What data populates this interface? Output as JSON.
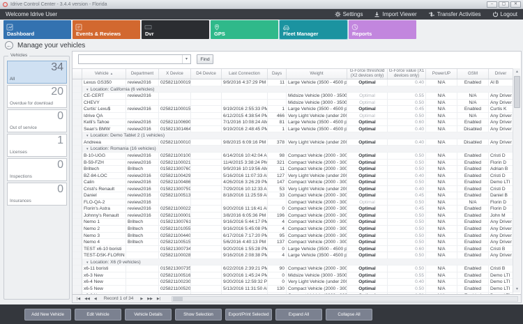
{
  "window": {
    "title": "Idrive Control Center - 3.4.4 version - Florida",
    "controls": [
      "minimize",
      "maximize",
      "close"
    ]
  },
  "menubar": {
    "welcome": "Welcome Idrive User",
    "actions": [
      {
        "id": "settings",
        "icon": "gear-icon",
        "label": "Settings"
      },
      {
        "id": "import-viewer",
        "icon": "download-icon",
        "label": "Import Viewer"
      },
      {
        "id": "transfer-activities",
        "icon": "transfer-icon",
        "label": "Transfer Activities"
      },
      {
        "id": "logout",
        "icon": "power-icon",
        "label": "Logout"
      }
    ]
  },
  "tabs": [
    {
      "id": "dashboard",
      "label": "Dashboard",
      "color": "#3372b0",
      "icon": "dashboard-icon",
      "selected": false
    },
    {
      "id": "events-reviews",
      "label": "Events & Reviews",
      "color": "#d2682f",
      "icon": "events-icon",
      "selected": false
    },
    {
      "id": "dvr",
      "label": "Dvr",
      "color": "#2b2d31",
      "icon": "dvr-icon",
      "selected": false
    },
    {
      "id": "gps",
      "label": "GPS",
      "color": "#2fb98a",
      "icon": "gps-icon",
      "selected": false
    },
    {
      "id": "fleet-manager",
      "label": "Fleet Manager",
      "color": "#1b93a0",
      "icon": "fleet-icon",
      "selected": true
    },
    {
      "id": "reports",
      "label": "Reports",
      "color": "#c286de",
      "icon": "reports-icon",
      "selected": false
    }
  ],
  "page": {
    "title": "Manage your vehicles"
  },
  "sidebar": {
    "title": "Vehicles",
    "cards": [
      {
        "id": "all",
        "value": "34",
        "label": "All",
        "selected": true
      },
      {
        "id": "overdue-for-download",
        "value": "20",
        "label": "Overdue for download",
        "selected": false
      },
      {
        "id": "out-of-service",
        "value": "0",
        "label": "Out of service",
        "selected": false
      },
      {
        "id": "licenses",
        "value": "1",
        "label": "Licenses",
        "selected": false
      },
      {
        "id": "inspections",
        "value": "0",
        "label": "Inspections",
        "selected": false
      },
      {
        "id": "insurances",
        "value": "0",
        "label": "Insurances",
        "selected": false
      }
    ]
  },
  "search": {
    "value": "",
    "find_label": "Find"
  },
  "table": {
    "columns": [
      {
        "id": "vehicle",
        "label": "Vehicle",
        "sort": "asc"
      },
      {
        "id": "department",
        "label": "Department"
      },
      {
        "id": "x-device",
        "label": "X Device"
      },
      {
        "id": "d4-device",
        "label": "D4 Device"
      },
      {
        "id": "last-connection",
        "label": "Last Connection"
      },
      {
        "id": "days",
        "label": "Days"
      },
      {
        "id": "weight",
        "label": "Weight"
      },
      {
        "id": "gforce-threshold",
        "label": "G-Force threshold (X2 devices only)"
      },
      {
        "id": "gforce-value",
        "label": "G-Force value (X1 devices only)"
      },
      {
        "id": "powerup",
        "label": "PowerUP"
      },
      {
        "id": "gsm",
        "label": "GSM"
      },
      {
        "id": "driver",
        "label": "Driver"
      }
    ],
    "rows": [
      {
        "type": "data",
        "vehicle": "Lexus GS350",
        "department": "review2016",
        "x_device": "025821100019",
        "d4_device": "",
        "last_connection": "9/9/2016 4:37:29 PM",
        "days": "11",
        "weight": "Large Vehicle (3500 - 4500 pounds)",
        "gforce_threshold": "Optimal",
        "gforce_value": "0.40",
        "powerup": "N/A",
        "gsm": "Enabled",
        "driver": "Al B"
      },
      {
        "type": "group",
        "label": "Location: California (6 vehicles)"
      },
      {
        "type": "data",
        "muted": true,
        "vehicle": "CE-CERT",
        "department": "review2016",
        "x_device": "",
        "d4_device": "",
        "last_connection": "",
        "days": "",
        "weight": "Midsize Vehicle (3000 - 3500 pounds)",
        "gforce_threshold": "Optimal",
        "gforce_value": "0.55",
        "powerup": "N/A",
        "gsm": "N/A",
        "driver": "Any Driver"
      },
      {
        "type": "data",
        "muted": true,
        "vehicle": "CHEVY",
        "department": "",
        "x_device": "",
        "d4_device": "",
        "last_connection": "",
        "days": "",
        "weight": "Midsize Vehicle (3000 - 3500 pounds)",
        "gforce_threshold": "Optimal",
        "gforce_value": "0.50",
        "powerup": "N/A",
        "gsm": "N/A",
        "driver": "Any Driver"
      },
      {
        "type": "data",
        "vehicle": "Curtis' Lexu$",
        "department": "review2016",
        "x_device": "025821100015",
        "d4_device": "",
        "last_connection": "9/19/2016 2:55:33 PM",
        "days": "1",
        "weight": "Large Vehicle (3500 - 4500 pounds)",
        "gforce_threshold": "Optimal",
        "gforce_value": "0.45",
        "powerup": "N/A",
        "gsm": "Enabled",
        "driver": "Curtis K"
      },
      {
        "type": "data",
        "muted": true,
        "vehicle": "Idrive QA",
        "department": "",
        "x_device": "",
        "d4_device": "",
        "last_connection": "6/12/2015 4:38:54 PM",
        "days": "466",
        "weight": "Very Light Vehicle (under 2000 pounds)",
        "gforce_threshold": "Optimal",
        "gforce_value": "0.50",
        "powerup": "N/A",
        "gsm": "N/A",
        "driver": "Any Driver"
      },
      {
        "type": "data",
        "vehicle": "Kelli's Tahoe",
        "department": "review2016",
        "x_device": "025821100690",
        "d4_device": "",
        "last_connection": "7/1/2016 10:08:24 AM",
        "days": "81",
        "weight": "Large Vehicle (3500 - 4500 pounds)",
        "gforce_threshold": "Optimal",
        "gforce_value": "0.60",
        "powerup": "N/A",
        "gsm": "Enabled",
        "driver": "Any Driver"
      },
      {
        "type": "data",
        "vehicle": "Sean's BMW",
        "department": "review2016",
        "x_device": "015821301464",
        "d4_device": "",
        "last_connection": "9/19/2016 2:48:45 PM",
        "days": "1",
        "weight": "Large Vehicle (3500 - 4500 pounds)",
        "gforce_threshold": "Optimal",
        "gforce_value": "0.40",
        "powerup": "N/A",
        "gsm": "Disabled",
        "driver": "Any Driver"
      },
      {
        "type": "group",
        "label": "Location: Demo Tablet 2 (1 vehicles)"
      },
      {
        "type": "data",
        "vehicle": "Andreea",
        "department": "",
        "x_device": "025821100010",
        "d4_device": "",
        "last_connection": "9/8/2015 6:09:16 PM",
        "days": "378",
        "weight": "Very Light Vehicle (under 2000 pounds)",
        "gforce_threshold": "Optimal",
        "gforce_value": "0.40",
        "powerup": "N/A",
        "gsm": "Disabled",
        "driver": "Any Driver"
      },
      {
        "type": "group",
        "label": "Location: Romania (16 vehicles)"
      },
      {
        "type": "data",
        "vehicle": "B-10-UGG",
        "department": "review2016",
        "x_device": "025821100100",
        "d4_device": "",
        "last_connection": "6/14/2016 10:42:04 AM",
        "days": "98",
        "weight": "Compact Vehicle (2000 - 3000 pounds)",
        "gforce_threshold": "Optimal",
        "gforce_value": "0.50",
        "powerup": "N/A",
        "gsm": "Enabled",
        "driver": "Cristi D"
      },
      {
        "type": "data",
        "vehicle": "B-59-FZH",
        "department": "review2016",
        "x_device": "025821100021",
        "d4_device": "",
        "last_connection": "11/4/2015 3:38:24 PM",
        "days": "321",
        "weight": "Compact Vehicle (2000 - 3000 pounds)",
        "gforce_threshold": "Optimal",
        "gforce_value": "0.50",
        "powerup": "N/A",
        "gsm": "Enabled",
        "driver": "Florin D"
      },
      {
        "type": "data",
        "vehicle": "Briltech",
        "department": "Briltech",
        "x_device": "015821300760",
        "d4_device": "",
        "last_connection": "9/9/2016 10:19:56 AM",
        "days": "11",
        "weight": "Compact Vehicle (2000 - 3000 pounds)",
        "gforce_threshold": "Optimal",
        "gforce_value": "0.50",
        "powerup": "N/A",
        "gsm": "Enabled",
        "driver": "Adrian B"
      },
      {
        "type": "data",
        "vehicle": "BZ-84-LOC",
        "department": "review2016",
        "x_device": "025821100429",
        "d4_device": "",
        "last_connection": "5/16/2016 11:07:33 AM",
        "days": "127",
        "weight": "Very Light Vehicle (under 2000 pounds)",
        "gforce_threshold": "Optimal",
        "gforce_value": "0.40",
        "powerup": "N/A",
        "gsm": "Enabled",
        "driver": "Cristi D"
      },
      {
        "type": "data",
        "vehicle": "Calin",
        "department": "review2016",
        "x_device": "025821100486",
        "d4_device": "",
        "last_connection": "4/26/2016 3:26:29 PM",
        "days": "147",
        "weight": "Compact Vehicle (2000 - 3000 pounds)",
        "gforce_threshold": "Optimal",
        "gforce_value": "0.50",
        "powerup": "N/A",
        "gsm": "Enabled",
        "driver": "Demo LTI"
      },
      {
        "type": "data",
        "vehicle": "Cristi's Renault",
        "department": "review2016",
        "x_device": "015821300759",
        "d4_device": "",
        "last_connection": "7/29/2016 10:12:33 AM",
        "days": "53",
        "weight": "Very Light Vehicle (under 2000 pounds)",
        "gforce_threshold": "Optimal",
        "gforce_value": "0.40",
        "powerup": "N/A",
        "gsm": "Enabled",
        "driver": "Cristi D"
      },
      {
        "type": "data",
        "vehicle": "Daniel",
        "department": "review2016",
        "x_device": "025821100513",
        "d4_device": "",
        "last_connection": "8/18/2016 11:25:59 AM",
        "days": "33",
        "weight": "Compact Vehicle (2000 - 3000 pounds)",
        "gforce_threshold": "Optimal",
        "gforce_value": "0.45",
        "powerup": "N/A",
        "gsm": "Enabled",
        "driver": "Daniel B"
      },
      {
        "type": "data",
        "muted": true,
        "vehicle": "FLO-QA-2",
        "department": "review2016",
        "x_device": "",
        "d4_device": "",
        "last_connection": "",
        "days": "",
        "weight": "Compact Vehicle (2000 - 3000 pounds)",
        "gforce_threshold": "Optimal",
        "gforce_value": "0.50",
        "powerup": "N/A",
        "gsm": "N/A",
        "driver": "Florin D"
      },
      {
        "type": "data",
        "vehicle": "Florin's Astra",
        "department": "review2016",
        "x_device": "025821100022",
        "d4_device": "",
        "last_connection": "9/20/2016 11:16:41 AM",
        "days": "0",
        "weight": "Compact Vehicle (2000 - 3000 pounds)",
        "gforce_threshold": "Optimal",
        "gforce_value": "0.45",
        "powerup": "N/A",
        "gsm": "Enabled",
        "driver": "Florin D"
      },
      {
        "type": "data",
        "vehicle": "Johnny's Renault",
        "department": "review2016",
        "x_device": "025821100001",
        "d4_device": "",
        "last_connection": "3/8/2016 6:05:36 PM",
        "days": "196",
        "weight": "Compact Vehicle (2000 - 3000 pounds)",
        "gforce_threshold": "Optimal",
        "gforce_value": "0.50",
        "powerup": "N/A",
        "gsm": "Enabled",
        "driver": "John M"
      },
      {
        "type": "data",
        "vehicle": "Nemo 1",
        "department": "Briltech",
        "x_device": "015821300761",
        "d4_device": "",
        "last_connection": "9/16/2016 5:44:17 PM",
        "days": "4",
        "weight": "Compact Vehicle (2000 - 3000 pounds)",
        "gforce_threshold": "Optimal",
        "gforce_value": "0.50",
        "powerup": "N/A",
        "gsm": "Enabled",
        "driver": "Any Driver"
      },
      {
        "type": "data",
        "vehicle": "Nemo 2",
        "department": "Briltech",
        "x_device": "025821101055",
        "d4_device": "",
        "last_connection": "9/16/2016 5:45:08 PM",
        "days": "4",
        "weight": "Compact Vehicle (2000 - 3000 pounds)",
        "gforce_threshold": "Optimal",
        "gforce_value": "0.50",
        "powerup": "N/A",
        "gsm": "Enabled",
        "driver": "Any Driver"
      },
      {
        "type": "data",
        "vehicle": "Nemo 3",
        "department": "Briltech",
        "x_device": "025821100440",
        "d4_device": "",
        "last_connection": "6/17/2016 7:17:20 PM",
        "days": "95",
        "weight": "Compact Vehicle (2000 - 3000 pounds)",
        "gforce_threshold": "Optimal",
        "gforce_value": "0.50",
        "powerup": "N/A",
        "gsm": "Enabled",
        "driver": "Any Driver"
      },
      {
        "type": "data",
        "vehicle": "Nemo 4",
        "department": "Briltech",
        "x_device": "025821100515",
        "d4_device": "",
        "last_connection": "5/6/2016 4:40:13 PM",
        "days": "137",
        "weight": "Compact Vehicle (2000 - 3000 pounds)",
        "gforce_threshold": "Optimal",
        "gforce_value": "0.50",
        "powerup": "N/A",
        "gsm": "Enabled",
        "driver": "Any Driver"
      },
      {
        "type": "data",
        "vehicle": "TEST x6-10 boristi",
        "department": "",
        "x_device": "015821300734",
        "d4_device": "",
        "last_connection": "9/20/2016 1:55:28 PM",
        "days": "0",
        "weight": "Large Vehicle (3500 - 4500 pounds)",
        "gforce_threshold": "Optimal",
        "gforce_value": "0.60",
        "powerup": "N/A",
        "gsm": "Enabled",
        "driver": "Cristi B"
      },
      {
        "type": "data",
        "vehicle": "TEST-DSK-FLORIN",
        "department": "",
        "x_device": "025821100028",
        "d4_device": "",
        "last_connection": "9/16/2016 2:08:38 PM",
        "days": "4",
        "weight": "Large Vehicle (3500 - 4500 pounds)",
        "gforce_threshold": "Optimal",
        "gforce_value": "0.50",
        "powerup": "N/A",
        "gsm": "Enabled",
        "driver": "Any Driver"
      },
      {
        "type": "group",
        "label": "Location: X6 (9 vehicles)"
      },
      {
        "type": "data",
        "vehicle": "x6-11 boristi",
        "department": "",
        "x_device": "015821300735",
        "d4_device": "",
        "last_connection": "6/22/2016 2:39:21 PM",
        "days": "90",
        "weight": "Compact Vehicle (2000 - 3000 pounds)",
        "gforce_threshold": "Optimal",
        "gforce_value": "0.50",
        "powerup": "N/A",
        "gsm": "Enabled",
        "driver": "Cristi B"
      },
      {
        "type": "data",
        "vehicle": "x6-3 New",
        "department": "",
        "x_device": "025821100516",
        "d4_device": "",
        "last_connection": "9/20/2016 1:45:24 PM",
        "days": "0",
        "weight": "Midsize Vehicle (3000 - 3500 pounds)",
        "gforce_threshold": "Optimal",
        "gforce_value": "0.55",
        "powerup": "N/A",
        "gsm": "Enabled",
        "driver": "Demo LTI"
      },
      {
        "type": "data",
        "vehicle": "x6-4 New",
        "department": "",
        "x_device": "025821100230",
        "d4_device": "",
        "last_connection": "9/20/2016 12:59:32 PM",
        "days": "0",
        "weight": "Very Light Vehicle (under 2000 pounds)",
        "gforce_threshold": "Optimal",
        "gforce_value": "0.40",
        "powerup": "N/A",
        "gsm": "Enabled",
        "driver": "Demo LTI"
      },
      {
        "type": "data",
        "vehicle": "x6-5 New",
        "department": "",
        "x_device": "025821100520",
        "d4_device": "",
        "last_connection": "5/13/2016 11:31:50 AM",
        "days": "130",
        "weight": "Compact Vehicle (2000 - 3000 pounds)",
        "gforce_threshold": "Optimal",
        "gforce_value": "0.50",
        "powerup": "N/A",
        "gsm": "Enabled",
        "driver": "Demo LTI"
      },
      {
        "type": "data",
        "vehicle": "x6-6 New",
        "department": "",
        "x_device": "",
        "d4_device": "",
        "last_connection": "",
        "days": "",
        "weight": "Compact Vehicle (2000 - 3000 pounds)",
        "gforce_threshold": "Optimal",
        "gforce_value": "0.50",
        "powerup": "N/A",
        "gsm": "Enabled",
        "driver": "Demo LTI"
      }
    ]
  },
  "record_navigator": {
    "label": "Record 1 of 34"
  },
  "footer": {
    "buttons": [
      {
        "id": "add-new-vehicle",
        "label": "Add New Vehicle"
      },
      {
        "id": "edit-vehicle",
        "label": "Edit Vehicle"
      },
      {
        "id": "vehicle-details",
        "label": "Vehicle Details"
      },
      {
        "id": "show-selection",
        "label": "Show Selection"
      },
      {
        "id": "export-print-selected",
        "label": "Export/Print Selected"
      },
      {
        "id": "expand-all",
        "label": "Expand All"
      },
      {
        "id": "collapse-all",
        "label": "Collapse All"
      }
    ]
  }
}
